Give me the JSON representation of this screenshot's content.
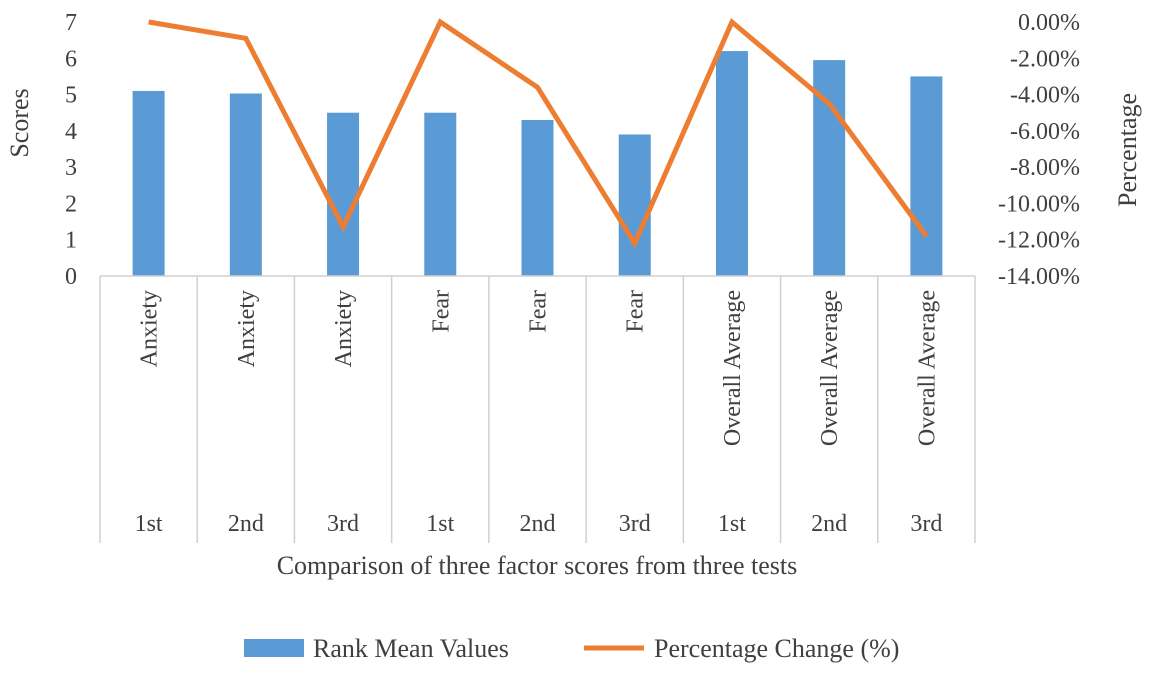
{
  "chart_data": {
    "type": "bar",
    "title": "",
    "xlabel": "Comparison of three factor scores from three tests",
    "ylabel": "Scores",
    "y2label": "Percentage",
    "ylim": [
      0,
      7
    ],
    "y2lim": [
      -14,
      0
    ],
    "yticks": [
      "0",
      "1",
      "2",
      "3",
      "4",
      "5",
      "6",
      "7"
    ],
    "y2ticks": [
      "0.00%",
      "-2.00%",
      "-4.00%",
      "-6.00%",
      "-8.00%",
      "-10.00%",
      "-12.00%",
      "-14.00%"
    ],
    "categories": [
      {
        "group": "Anxiety",
        "test": "1st"
      },
      {
        "group": "Anxiety",
        "test": "2nd"
      },
      {
        "group": "Anxiety",
        "test": "3rd"
      },
      {
        "group": "Fear",
        "test": "1st"
      },
      {
        "group": "Fear",
        "test": "2nd"
      },
      {
        "group": "Fear",
        "test": "3rd"
      },
      {
        "group": "Overall Average",
        "test": "1st"
      },
      {
        "group": "Overall Average",
        "test": "2nd"
      },
      {
        "group": "Overall Average",
        "test": "3rd"
      }
    ],
    "series": [
      {
        "name": "Rank Mean Values",
        "type": "bar",
        "axis": "left",
        "color": "#5B9BD5",
        "values": [
          5.1,
          5.03,
          4.5,
          4.5,
          4.3,
          3.9,
          6.2,
          5.95,
          5.5
        ]
      },
      {
        "name": "Percentage Change (%)",
        "type": "line",
        "axis": "right",
        "color": "#ED7D31",
        "values": [
          0.0,
          -0.9,
          -11.3,
          0.0,
          -3.6,
          -12.2,
          0.0,
          -4.5,
          -11.8
        ]
      }
    ],
    "legend": "bottom",
    "grid": false
  }
}
